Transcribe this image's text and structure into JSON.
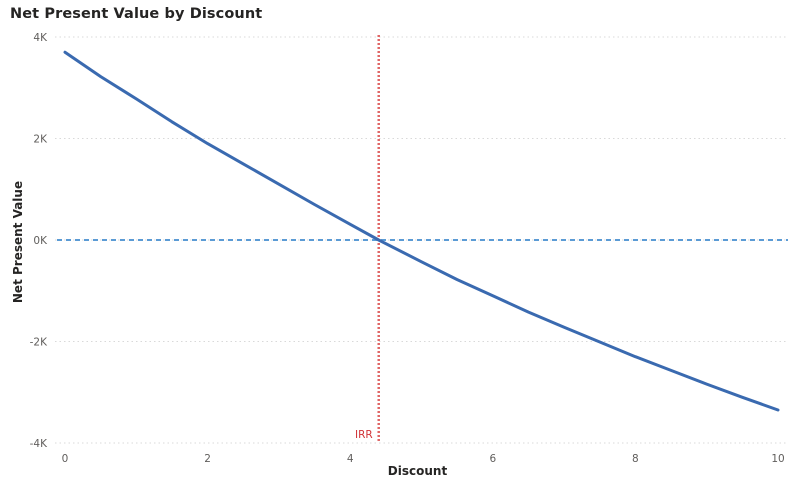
{
  "chart_title": "Net Present Value by Discount",
  "chart_data": {
    "type": "line",
    "title": "Net Present Value by Discount",
    "xlabel": "Discount",
    "ylabel": "Net Present Value",
    "xlim": [
      0,
      10
    ],
    "ylim": [
      -4000,
      4000
    ],
    "x_ticks": [
      0,
      2,
      4,
      6,
      8,
      10
    ],
    "y_ticks": [
      4000,
      2000,
      0,
      -2000,
      -4000
    ],
    "y_tick_labels": [
      "4K",
      "2K",
      "0K",
      "-2K",
      "-4K"
    ],
    "grid": true,
    "series": [
      {
        "color": "#3a6ab0",
        "x": [
          0,
          0.5,
          1,
          1.5,
          2,
          2.5,
          3,
          3.5,
          4,
          4.4,
          5,
          5.5,
          6,
          6.5,
          7,
          7.5,
          8,
          8.5,
          9,
          9.5,
          10
        ],
        "values": [
          3700,
          3220,
          2780,
          2330,
          1900,
          1500,
          1100,
          700,
          310,
          0,
          -430,
          -780,
          -1100,
          -1420,
          -1720,
          -2010,
          -2300,
          -2570,
          -2840,
          -3100,
          -3350
        ]
      }
    ],
    "reference_lines": [
      {
        "orientation": "horizontal",
        "value": 0,
        "style": "dashed",
        "color": "#5b9bd5"
      },
      {
        "orientation": "vertical",
        "value": 4.4,
        "label": "IRR",
        "style": "dotted",
        "color": "#e06666"
      }
    ]
  }
}
